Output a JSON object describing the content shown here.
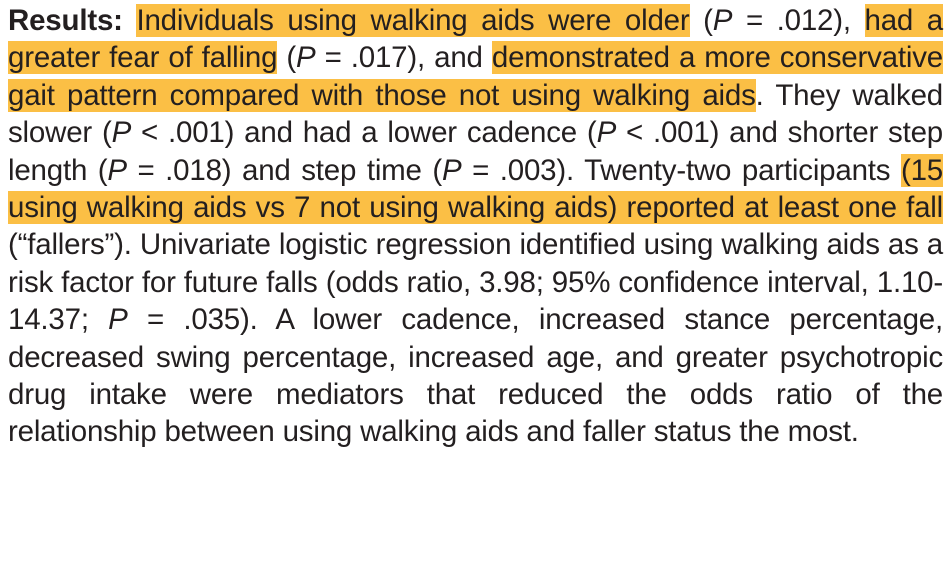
{
  "paragraph": {
    "label": "Results:",
    "segments": [
      {
        "text": " "
      },
      {
        "text": "Individuals using walking aids were older",
        "highlight": true
      },
      {
        "text": " ("
      },
      {
        "text": "P",
        "italic": true
      },
      {
        "text": " = .012), "
      },
      {
        "text": "had a greater fear of falling",
        "highlight": true
      },
      {
        "text": " ("
      },
      {
        "text": "P",
        "italic": true
      },
      {
        "text": " = .017), and "
      },
      {
        "text": "demonstrated a more conservative gait pattern compared with those not using walking aids",
        "highlight": true
      },
      {
        "text": ". They walked slower ("
      },
      {
        "text": "P",
        "italic": true
      },
      {
        "text": " < .001) and had a lower cadence ("
      },
      {
        "text": "P",
        "italic": true
      },
      {
        "text": " < .001) and shorter step length ("
      },
      {
        "text": "P",
        "italic": true
      },
      {
        "text": " = .018) and step time ("
      },
      {
        "text": "P",
        "italic": true
      },
      {
        "text": " = .003). Twenty-two participants "
      },
      {
        "text": "(15 using walk­ing aids vs 7 not using walking aids) reported at least one fall",
        "highlight": true
      },
      {
        "text": " (“fallers”). Univariate logistic regression identified using walk­ing aids as a risk factor for future falls (odds ratio, 3.98; 95% confidence interval, 1.10-14.37; "
      },
      {
        "text": "P",
        "italic": true
      },
      {
        "text": " = .035). A lower cadence, increased stance percentage, decreased swing percentage, increased age, and greater psychotropic drug intake were mediators that reduced the odds ratio of the relationship between using walking aids and faller status the most."
      }
    ]
  }
}
